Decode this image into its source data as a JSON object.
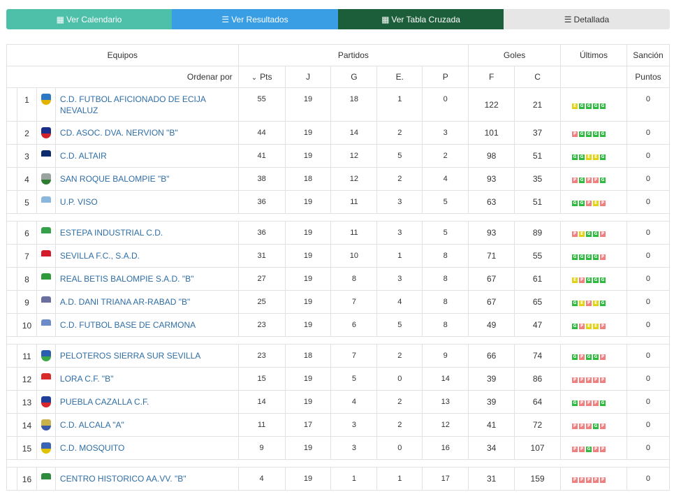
{
  "tabs": [
    {
      "icon": "calendar-icon",
      "glyph": "▦",
      "label": "Ver Calendario"
    },
    {
      "icon": "list-icon",
      "glyph": "☰",
      "label": "Ver Resultados"
    },
    {
      "icon": "table-icon",
      "glyph": "▦",
      "label": "Ver Tabla Cruzada"
    },
    {
      "icon": "detail-list-icon",
      "glyph": "☰",
      "label": "Detallada"
    }
  ],
  "header": {
    "equipos": "Equipos",
    "partidos": "Partidos",
    "goles": "Goles",
    "ultimos": "Últimos",
    "sancion": "Sanción",
    "ordenar_por": "Ordenar por",
    "pts": "Pts",
    "j": "J",
    "g": "G",
    "e": "E.",
    "p": "P",
    "f": "F",
    "c": "C",
    "puntos": "Puntos"
  },
  "colors": {
    "G": "#2dbb3d",
    "P": "#f07f7f",
    "E": "#e2d312"
  },
  "rows": [
    {
      "pos": "1",
      "team": "C.D. FUTBOL AFICIONADO DE ECIJA NEVALUZ",
      "pts": "55",
      "j": "19",
      "g": "18",
      "e": "1",
      "p": "0",
      "f": "122",
      "c": "21",
      "last": [
        "E",
        "G",
        "G",
        "G",
        "G"
      ],
      "sancion": "0",
      "crest": "#2b78c4",
      "crest2": "#e2b400"
    },
    {
      "pos": "2",
      "team": "CD. ASOC. DVA. NERVION \"B\"",
      "pts": "44",
      "j": "19",
      "g": "14",
      "e": "2",
      "p": "3",
      "f": "101",
      "c": "37",
      "last": [
        "P",
        "G",
        "G",
        "G",
        "G"
      ],
      "sancion": "0",
      "crest": "#1a2d8a",
      "crest2": "#d0202a"
    },
    {
      "pos": "3",
      "team": "C.D. ALTAIR",
      "pts": "41",
      "j": "19",
      "g": "12",
      "e": "5",
      "p": "2",
      "f": "98",
      "c": "51",
      "last": [
        "G",
        "G",
        "E",
        "E",
        "G"
      ],
      "sancion": "0",
      "crest": "#0d2c6e",
      "crest2": "#ffffff"
    },
    {
      "pos": "4",
      "team": "SAN ROQUE BALOMPIE \"B\"",
      "pts": "38",
      "j": "18",
      "g": "12",
      "e": "2",
      "p": "4",
      "f": "93",
      "c": "35",
      "last": [
        "P",
        "G",
        "P",
        "P",
        "G"
      ],
      "sancion": "0",
      "crest": "#9aa3a0",
      "crest2": "#2e7d32"
    },
    {
      "pos": "5",
      "team": "U.P. VISO",
      "pts": "36",
      "j": "19",
      "g": "11",
      "e": "3",
      "p": "5",
      "f": "63",
      "c": "51",
      "last": [
        "G",
        "G",
        "P",
        "E",
        "P"
      ],
      "sancion": "0",
      "crest": "#8bb7de",
      "crest2": "#ffffff"
    },
    {
      "spacer": true
    },
    {
      "pos": "6",
      "team": "ESTEPA INDUSTRIAL C.D.",
      "pts": "36",
      "j": "19",
      "g": "11",
      "e": "3",
      "p": "5",
      "f": "93",
      "c": "89",
      "last": [
        "P",
        "E",
        "G",
        "G",
        "P"
      ],
      "sancion": "0",
      "crest": "#35a04a",
      "crest2": "#ffffff"
    },
    {
      "pos": "7",
      "team": "SEVILLA F.C., S.A.D.",
      "pts": "31",
      "j": "19",
      "g": "10",
      "e": "1",
      "p": "8",
      "f": "71",
      "c": "55",
      "last": [
        "G",
        "G",
        "G",
        "G",
        "P"
      ],
      "sancion": "0",
      "crest": "#d41b2c",
      "crest2": "#ffffff"
    },
    {
      "pos": "8",
      "team": "REAL BETIS BALOMPIE S.A.D. \"B\"",
      "pts": "27",
      "j": "19",
      "g": "8",
      "e": "3",
      "p": "8",
      "f": "67",
      "c": "61",
      "last": [
        "E",
        "P",
        "G",
        "G",
        "G"
      ],
      "sancion": "0",
      "crest": "#2e9a3c",
      "crest2": "#ffffff"
    },
    {
      "pos": "9",
      "team": "A.D. DANI TRIANA AR-RABAD \"B\"",
      "pts": "25",
      "j": "19",
      "g": "7",
      "e": "4",
      "p": "8",
      "f": "67",
      "c": "65",
      "last": [
        "G",
        "E",
        "P",
        "E",
        "G"
      ],
      "sancion": "0",
      "crest": "#6a6f9e",
      "crest2": "#ffffff"
    },
    {
      "pos": "10",
      "team": "C.D. FUTBOL BASE DE CARMONA",
      "pts": "23",
      "j": "19",
      "g": "6",
      "e": "5",
      "p": "8",
      "f": "49",
      "c": "47",
      "last": [
        "G",
        "P",
        "E",
        "E",
        "P"
      ],
      "sancion": "0",
      "crest": "#6b8cc9",
      "crest2": "#ffffff"
    },
    {
      "spacer": true
    },
    {
      "pos": "11",
      "team": "PELOTEROS SIERRA SUR SEVILLA",
      "pts": "23",
      "j": "18",
      "g": "7",
      "e": "2",
      "p": "9",
      "f": "66",
      "c": "74",
      "last": [
        "G",
        "P",
        "G",
        "G",
        "P"
      ],
      "sancion": "0",
      "crest": "#2a5fb0",
      "crest2": "#3ca84a"
    },
    {
      "pos": "12",
      "team": "LORA C.F. \"B\"",
      "pts": "15",
      "j": "19",
      "g": "5",
      "e": "0",
      "p": "14",
      "f": "39",
      "c": "86",
      "last": [
        "P",
        "P",
        "P",
        "P",
        "P"
      ],
      "sancion": "0",
      "crest": "#d92a2a",
      "crest2": "#ffffff"
    },
    {
      "pos": "13",
      "team": "PUEBLA CAZALLA C.F.",
      "pts": "14",
      "j": "19",
      "g": "4",
      "e": "2",
      "p": "13",
      "f": "39",
      "c": "64",
      "last": [
        "G",
        "P",
        "P",
        "P",
        "G"
      ],
      "sancion": "0",
      "crest": "#1f3f9a",
      "crest2": "#d9262b"
    },
    {
      "pos": "14",
      "team": "C.D. ALCALA \"A\"",
      "pts": "11",
      "j": "17",
      "g": "3",
      "e": "2",
      "p": "12",
      "f": "41",
      "c": "72",
      "last": [
        "P",
        "P",
        "P",
        "G",
        "P"
      ],
      "sancion": "0",
      "crest": "#c9b24c",
      "crest2": "#3a5aa8"
    },
    {
      "pos": "15",
      "team": "C.D. MOSQUITO",
      "pts": "9",
      "j": "19",
      "g": "3",
      "e": "0",
      "p": "16",
      "f": "34",
      "c": "107",
      "last": [
        "P",
        "P",
        "G",
        "P",
        "P"
      ],
      "sancion": "0",
      "crest": "#3a64b5",
      "crest2": "#e0c200"
    },
    {
      "spacer": true
    },
    {
      "pos": "16",
      "team": "CENTRO HISTORICO AA.VV. \"B\"",
      "pts": "4",
      "j": "19",
      "g": "1",
      "e": "1",
      "p": "17",
      "f": "31",
      "c": "159",
      "last": [
        "P",
        "P",
        "P",
        "P",
        "P"
      ],
      "sancion": "0",
      "crest": "#2e8b3e",
      "crest2": "#ffffff"
    }
  ]
}
